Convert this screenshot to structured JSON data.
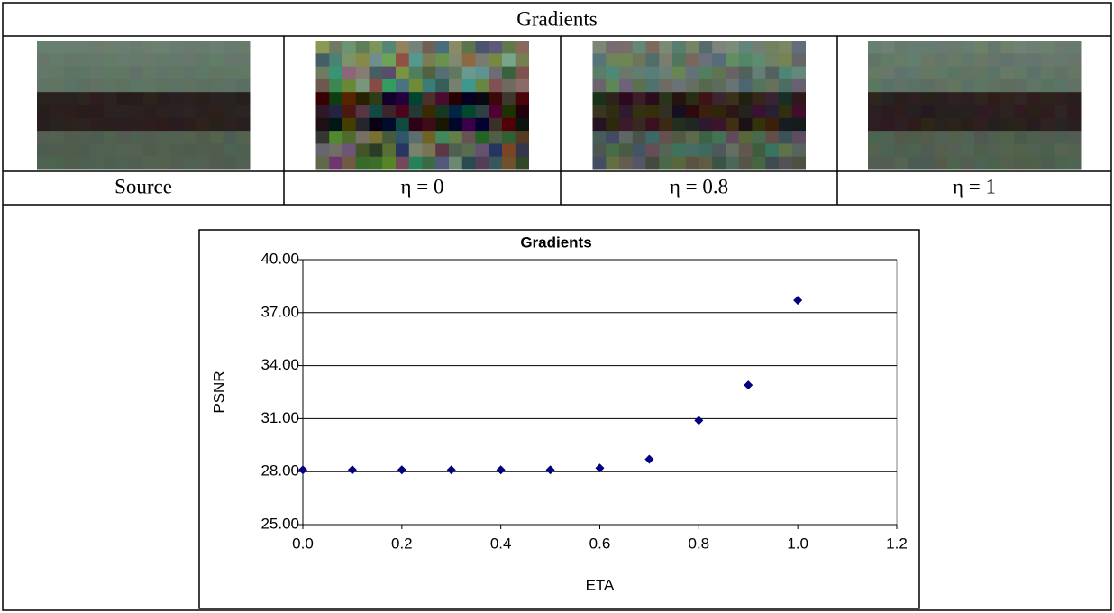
{
  "header": {
    "title": "Gradients"
  },
  "captions": [
    "Source",
    "η = 0",
    "η = 0.8",
    "η = 1"
  ],
  "chart_data": {
    "type": "scatter",
    "title": "Gradients",
    "x_label": "ETA",
    "y_label": "PSNR",
    "x": [
      0,
      0.1,
      0.2,
      0.3,
      0.4,
      0.5,
      0.6,
      0.7,
      0.8,
      0.9,
      1.0
    ],
    "values": [
      28.1,
      28.1,
      28.1,
      28.1,
      28.1,
      28.1,
      28.2,
      28.7,
      30.9,
      32.9,
      37.7
    ],
    "color": "#000080",
    "xlim": [
      0,
      1.2
    ],
    "xticks": [
      {
        "value": 0,
        "label": "0.0"
      },
      0.2,
      0.4,
      0.6,
      0.8,
      {
        "value": 1,
        "label": "1.0"
      },
      1.2
    ],
    "ylim": [
      25,
      40
    ],
    "yticks": [
      {
        "value": 25,
        "label": "25.00"
      },
      {
        "value": 28,
        "label": "28.00"
      },
      {
        "value": 31,
        "label": "31.00"
      },
      {
        "value": 34,
        "label": "34.00"
      },
      {
        "value": 37,
        "label": "37.00"
      },
      {
        "value": 40,
        "label": "40.00"
      }
    ],
    "grid": true
  }
}
